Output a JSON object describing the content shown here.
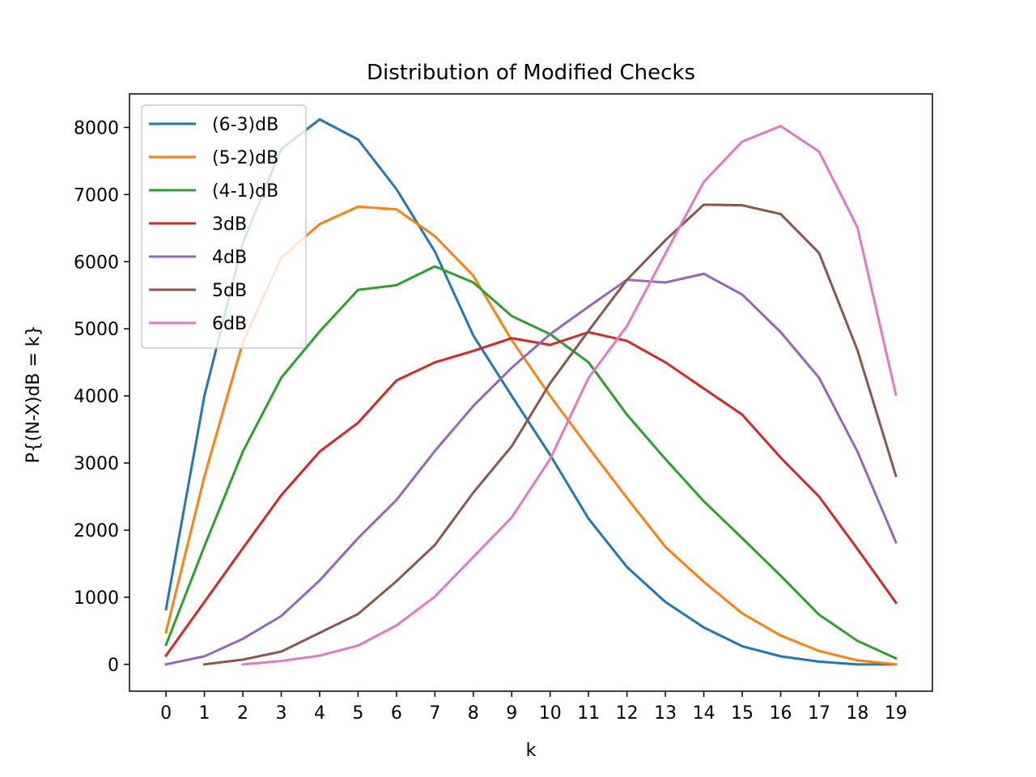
{
  "chart_data": {
    "type": "line",
    "title": "Distribution of Modified Checks",
    "xlabel": "k",
    "ylabel": "P{(N-X)dB = k}",
    "xlim": [
      -0.95,
      19.95
    ],
    "ylim": [
      -400,
      8500
    ],
    "xticks": [
      0,
      1,
      2,
      3,
      4,
      5,
      6,
      7,
      8,
      9,
      10,
      11,
      12,
      13,
      14,
      15,
      16,
      17,
      18,
      19
    ],
    "yticks": [
      0,
      1000,
      2000,
      3000,
      4000,
      5000,
      6000,
      7000,
      8000
    ],
    "grid": false,
    "legend_position": "top-left",
    "series": [
      {
        "name": "(6-3)dB",
        "color": "#1f77b4",
        "x": [
          0,
          1,
          2,
          3,
          4,
          5,
          6,
          7,
          8,
          9,
          10,
          11,
          12,
          13,
          14,
          15,
          16,
          17,
          18,
          19
        ],
        "values": [
          820,
          4000,
          6280,
          7680,
          8120,
          7820,
          7080,
          6150,
          4900,
          4000,
          3120,
          2170,
          1450,
          930,
          550,
          270,
          120,
          40,
          0,
          0
        ]
      },
      {
        "name": "(5-2)dB",
        "color": "#ff7f0e",
        "x": [
          0,
          1,
          2,
          3,
          4,
          5,
          6,
          7,
          8,
          9,
          10,
          11,
          12,
          13,
          14,
          15,
          16,
          17,
          18,
          19
        ],
        "values": [
          480,
          2800,
          4800,
          6060,
          6560,
          6820,
          6780,
          6380,
          5790,
          4830,
          4000,
          3230,
          2480,
          1750,
          1230,
          760,
          430,
          200,
          60,
          0
        ]
      },
      {
        "name": "(4-1)dB",
        "color": "#2ca02c",
        "x": [
          0,
          1,
          2,
          3,
          4,
          5,
          6,
          7,
          8,
          9,
          10,
          11,
          12,
          13,
          14,
          15,
          16,
          17,
          18,
          19
        ],
        "values": [
          290,
          1760,
          3170,
          4270,
          4960,
          5580,
          5650,
          5930,
          5690,
          5190,
          4920,
          4500,
          3720,
          3060,
          2430,
          1880,
          1320,
          740,
          350,
          90
        ]
      },
      {
        "name": "3dB",
        "color": "#d62728",
        "x": [
          0,
          1,
          2,
          3,
          4,
          5,
          6,
          7,
          8,
          9,
          10,
          11,
          12,
          13,
          14,
          15,
          16,
          17,
          18,
          19
        ],
        "values": [
          130,
          930,
          1730,
          2520,
          3170,
          3600,
          4230,
          4500,
          4670,
          4860,
          4760,
          4950,
          4820,
          4500,
          4110,
          3720,
          3080,
          2500,
          1720,
          920
        ]
      },
      {
        "name": "4dB",
        "color": "#9467bd",
        "x": [
          0,
          1,
          2,
          3,
          4,
          5,
          6,
          7,
          8,
          9,
          10,
          11,
          12,
          13,
          14,
          15,
          16,
          17,
          18,
          19
        ],
        "values": [
          0,
          120,
          380,
          720,
          1250,
          1880,
          2450,
          3180,
          3850,
          4420,
          4920,
          5330,
          5730,
          5690,
          5820,
          5510,
          4950,
          4270,
          3170,
          1820
        ]
      },
      {
        "name": "5dB",
        "color": "#8c564b",
        "x": [
          1,
          2,
          3,
          4,
          5,
          6,
          7,
          8,
          9,
          10,
          11,
          12,
          13,
          14,
          15,
          16,
          17,
          18,
          19
        ],
        "values": [
          0,
          70,
          190,
          470,
          750,
          1240,
          1780,
          2560,
          3250,
          4190,
          4970,
          5730,
          6320,
          6850,
          6840,
          6710,
          6130,
          4680,
          2810
        ]
      },
      {
        "name": "6dB",
        "color": "#e377c2",
        "x": [
          2,
          3,
          4,
          5,
          6,
          7,
          8,
          9,
          10,
          11,
          12,
          13,
          14,
          15,
          16,
          17,
          18,
          19
        ],
        "values": [
          0,
          50,
          130,
          280,
          580,
          1010,
          1600,
          2190,
          3060,
          4270,
          5040,
          6120,
          7190,
          7790,
          8020,
          7640,
          6510,
          4020
        ]
      }
    ]
  }
}
